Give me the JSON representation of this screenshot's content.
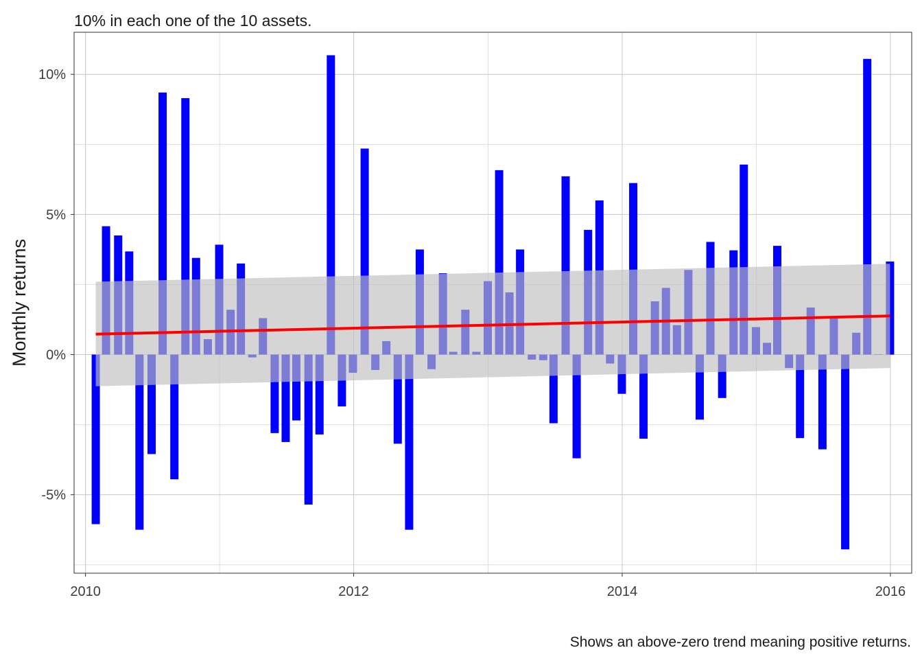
{
  "chart_data": {
    "type": "bar",
    "title": "10% in each one of the 10 assets.",
    "caption": "Shows an above-zero trend meaning positive returns.",
    "xlabel": "",
    "ylabel": "Monthly returns",
    "x_ticks": [
      "2010",
      "2012",
      "2014",
      "2016"
    ],
    "y_ticks": [
      "-5%",
      "0%",
      "5%",
      "10%"
    ],
    "xlim": [
      "2009-12-01",
      "2016-02-28"
    ],
    "ylim": [
      -0.078,
      0.115
    ],
    "grid": true,
    "legend": "none",
    "bar_color": "#0000ff",
    "trend_color": "#ff0000",
    "band_color": "#bebebe",
    "x": [
      "2010-01-29",
      "2010-02-26",
      "2010-03-31",
      "2010-04-30",
      "2010-05-28",
      "2010-06-30",
      "2010-07-30",
      "2010-08-31",
      "2010-09-30",
      "2010-10-29",
      "2010-11-30",
      "2010-12-31",
      "2011-01-31",
      "2011-02-28",
      "2011-03-31",
      "2011-04-29",
      "2011-05-31",
      "2011-06-30",
      "2011-07-29",
      "2011-08-31",
      "2011-09-30",
      "2011-10-31",
      "2011-11-30",
      "2011-12-30",
      "2012-01-31",
      "2012-02-29",
      "2012-03-30",
      "2012-04-30",
      "2012-05-31",
      "2012-06-29",
      "2012-07-31",
      "2012-08-31",
      "2012-09-28",
      "2012-10-31",
      "2012-11-30",
      "2012-12-31",
      "2013-01-31",
      "2013-02-28",
      "2013-03-29",
      "2013-04-30",
      "2013-05-31",
      "2013-06-28",
      "2013-07-31",
      "2013-08-30",
      "2013-09-30",
      "2013-10-31",
      "2013-11-29",
      "2013-12-31",
      "2014-01-31",
      "2014-02-28",
      "2014-03-31",
      "2014-04-30",
      "2014-05-30",
      "2014-06-30",
      "2014-07-31",
      "2014-08-29",
      "2014-09-30",
      "2014-10-31",
      "2014-11-28",
      "2014-12-31",
      "2015-01-30",
      "2015-02-27",
      "2015-03-31",
      "2015-04-30",
      "2015-05-29",
      "2015-06-30",
      "2015-07-31",
      "2015-08-31",
      "2015-09-30",
      "2015-10-30",
      "2015-11-30",
      "2015-12-31"
    ],
    "series": [
      {
        "values": [
          -0.0605,
          0.0458,
          0.0425,
          0.0368,
          -0.0625,
          -0.0355,
          0.0935,
          -0.0445,
          0.0915,
          0.0345,
          0.0055,
          0.0392,
          0.016,
          0.0325,
          -0.001,
          0.013,
          -0.028,
          -0.0312,
          -0.0235,
          -0.0535,
          -0.0285,
          0.1068,
          -0.0185,
          -0.0065,
          0.0735,
          -0.0055,
          0.0048,
          -0.0318,
          -0.0625,
          0.0375,
          -0.0052,
          0.029,
          0.001,
          0.016,
          0.001,
          0.0262,
          0.0658,
          0.0222,
          0.0375,
          -0.0018,
          -0.002,
          -0.0245,
          0.0636,
          -0.037,
          0.0445,
          0.055,
          -0.0032,
          -0.014,
          0.0612,
          -0.03,
          0.019,
          0.0238,
          0.0105,
          0.0302,
          -0.0232,
          0.0402,
          -0.0155,
          0.0372,
          0.0678,
          0.0098,
          0.0042,
          0.0388,
          -0.0048,
          -0.0298,
          0.0168,
          -0.0338,
          0.013,
          -0.0695,
          0.0078,
          0.1055,
          0.0,
          0.0332
        ]
      }
    ],
    "trend": {
      "x": [
        "2010-01-29",
        "2015-12-31"
      ],
      "y": [
        0.0073,
        0.0138
      ],
      "band_lower": [
        -0.0113,
        -0.0048
      ],
      "band_upper": [
        0.026,
        0.0324
      ]
    }
  }
}
